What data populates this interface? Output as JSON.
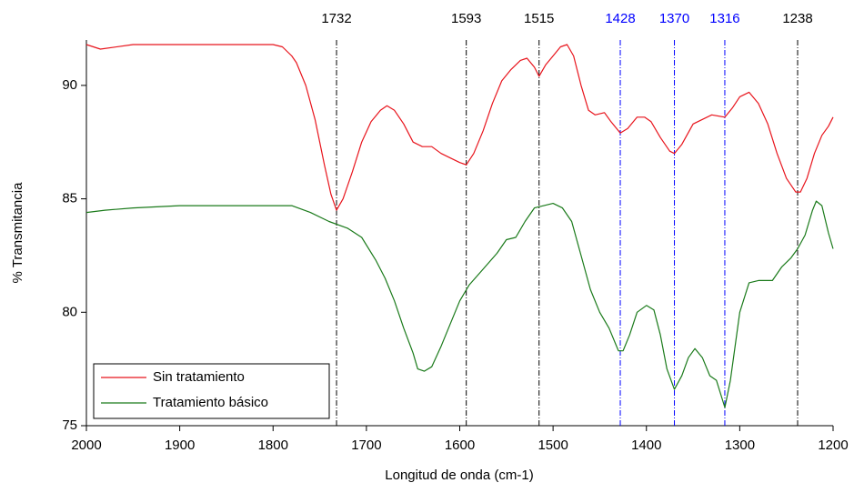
{
  "chart_data": {
    "type": "line",
    "xlabel": "Longitud de onda (cm-1)",
    "ylabel": "% Transmitancia",
    "xlim": [
      2000,
      1200
    ],
    "ylim": [
      75,
      92
    ],
    "xticks": [
      2000,
      1900,
      1800,
      1700,
      1600,
      1500,
      1400,
      1300,
      1200
    ],
    "yticks": [
      75,
      80,
      85,
      90
    ],
    "legend": "lower left",
    "annotations": [
      {
        "x": 1732,
        "color": "#000000"
      },
      {
        "x": 1593,
        "color": "#000000"
      },
      {
        "x": 1515,
        "color": "#000000"
      },
      {
        "x": 1428,
        "color": "#0000ff"
      },
      {
        "x": 1370,
        "color": "#0000ff"
      },
      {
        "x": 1316,
        "color": "#0000ff"
      },
      {
        "x": 1238,
        "color": "#000000"
      }
    ],
    "series": [
      {
        "name": "Sin tratamiento",
        "color": "#e8141c",
        "x": [
          2000,
          1985,
          1950,
          1900,
          1850,
          1800,
          1790,
          1780,
          1775,
          1765,
          1755,
          1745,
          1738,
          1732,
          1725,
          1715,
          1705,
          1695,
          1685,
          1678,
          1670,
          1660,
          1650,
          1640,
          1630,
          1620,
          1610,
          1600,
          1593,
          1585,
          1575,
          1565,
          1555,
          1545,
          1535,
          1528,
          1520,
          1515,
          1508,
          1500,
          1492,
          1485,
          1478,
          1470,
          1462,
          1455,
          1445,
          1438,
          1428,
          1420,
          1410,
          1402,
          1395,
          1385,
          1375,
          1370,
          1362,
          1350,
          1340,
          1330,
          1316,
          1308,
          1300,
          1290,
          1280,
          1270,
          1260,
          1250,
          1240,
          1235,
          1228,
          1220,
          1212,
          1205,
          1200
        ],
        "values": [
          91.8,
          91.6,
          91.8,
          91.8,
          91.8,
          91.8,
          91.7,
          91.3,
          91.0,
          90.0,
          88.5,
          86.5,
          85.2,
          84.5,
          85.0,
          86.2,
          87.5,
          88.4,
          88.9,
          89.1,
          88.9,
          88.3,
          87.5,
          87.3,
          87.3,
          87.0,
          86.8,
          86.6,
          86.5,
          87.0,
          88.0,
          89.2,
          90.2,
          90.7,
          91.1,
          91.2,
          90.8,
          90.4,
          90.9,
          91.3,
          91.7,
          91.8,
          91.3,
          90.0,
          88.9,
          88.7,
          88.8,
          88.4,
          87.9,
          88.1,
          88.6,
          88.6,
          88.4,
          87.7,
          87.1,
          87.0,
          87.4,
          88.3,
          88.5,
          88.7,
          88.6,
          89.0,
          89.5,
          89.7,
          89.2,
          88.3,
          87.0,
          85.9,
          85.3,
          85.3,
          85.9,
          87.0,
          87.8,
          88.2,
          88.6
        ]
      },
      {
        "name": "Tratamiento básico",
        "color": "#1a7a1a",
        "x": [
          2000,
          1980,
          1950,
          1900,
          1850,
          1800,
          1780,
          1760,
          1740,
          1720,
          1705,
          1690,
          1680,
          1670,
          1660,
          1650,
          1645,
          1638,
          1630,
          1620,
          1610,
          1600,
          1590,
          1575,
          1560,
          1550,
          1540,
          1530,
          1520,
          1510,
          1500,
          1490,
          1480,
          1470,
          1460,
          1450,
          1440,
          1430,
          1425,
          1418,
          1410,
          1400,
          1392,
          1385,
          1378,
          1370,
          1362,
          1355,
          1348,
          1340,
          1332,
          1325,
          1316,
          1310,
          1300,
          1290,
          1280,
          1265,
          1255,
          1245,
          1238,
          1230,
          1222,
          1218,
          1212,
          1205,
          1200
        ],
        "values": [
          84.4,
          84.5,
          84.6,
          84.7,
          84.7,
          84.7,
          84.7,
          84.4,
          84.0,
          83.7,
          83.3,
          82.3,
          81.5,
          80.5,
          79.3,
          78.2,
          77.5,
          77.4,
          77.6,
          78.5,
          79.5,
          80.5,
          81.2,
          81.9,
          82.6,
          83.2,
          83.3,
          84.0,
          84.6,
          84.7,
          84.8,
          84.6,
          84.0,
          82.5,
          81.0,
          80.0,
          79.3,
          78.3,
          78.3,
          79.0,
          80.0,
          80.3,
          80.1,
          79.0,
          77.5,
          76.6,
          77.2,
          78.0,
          78.4,
          78.0,
          77.2,
          77.0,
          75.8,
          77.0,
          80.0,
          81.3,
          81.4,
          81.4,
          82.0,
          82.4,
          82.8,
          83.4,
          84.5,
          84.9,
          84.7,
          83.5,
          82.8
        ]
      }
    ]
  }
}
